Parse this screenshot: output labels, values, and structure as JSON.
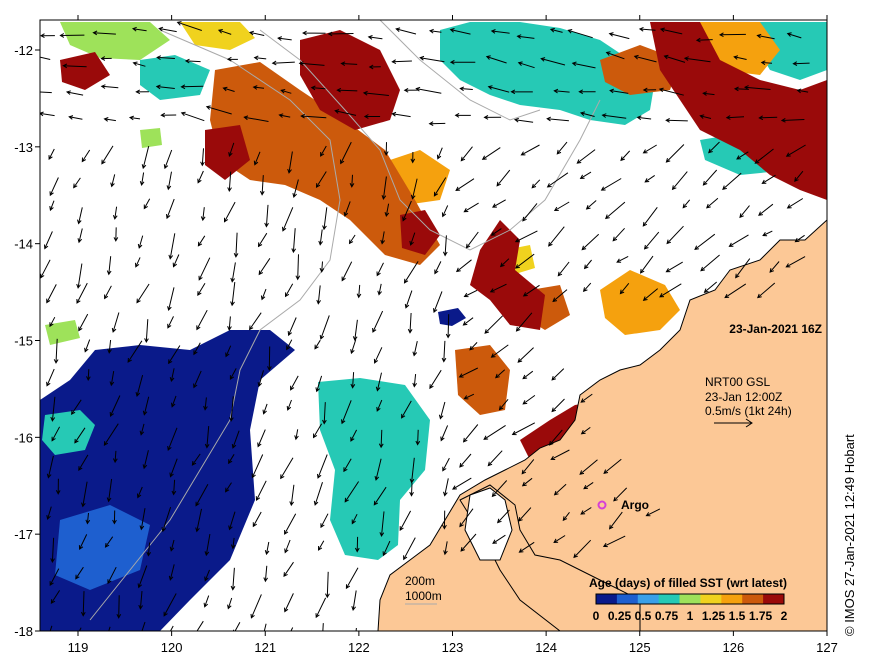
{
  "map": {
    "date_label": "23-Jan-2021 16Z",
    "current_info": {
      "line1": "NRT00 GSL",
      "line2": "23-Jan 12:00Z",
      "line3": "0.5m/s (1kt 24h)"
    },
    "argo_label": "Argo",
    "depth_labels": [
      "200m",
      "1000m"
    ],
    "credit": "© IMOS 27-Jan-2021 12:49 Hobart",
    "x_ticks": [
      "119",
      "120",
      "121",
      "122",
      "123",
      "124",
      "125",
      "126",
      "127"
    ],
    "y_ticks": [
      "-12",
      "-13",
      "-14",
      "-15",
      "-16",
      "-17",
      "-18"
    ],
    "colorbar": {
      "title": "Age (days) of filled SST (wrt latest)",
      "tick_labels": [
        "0",
        "0.25",
        "0.5",
        "0.75",
        "1",
        "1.25",
        "1.5",
        "1.75",
        "2"
      ],
      "colors": [
        "#0a1a8a",
        "#1e5fcf",
        "#3aa0e8",
        "#26c9b5",
        "#9ee25a",
        "#f0d21e",
        "#f5a10e",
        "#cc5a0c",
        "#9a0a0a"
      ]
    },
    "colors": {
      "land": "#fcc896",
      "coast": "#000000",
      "bathy": "#aaaaaa",
      "argo": "#d63fd6"
    }
  }
}
